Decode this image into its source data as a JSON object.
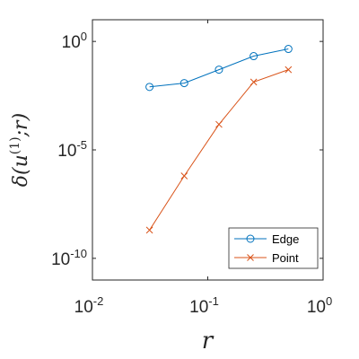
{
  "chart_data": {
    "type": "line",
    "xscale": "log",
    "yscale": "log",
    "xlim": [
      0.01,
      1
    ],
    "ylim": [
      1e-11,
      10
    ],
    "xticks": [
      {
        "base": "10",
        "exp": "-2",
        "value": 0.01
      },
      {
        "base": "10",
        "exp": "-1",
        "value": 0.1
      },
      {
        "base": "10",
        "exp": "0",
        "value": 1
      }
    ],
    "yticks": [
      {
        "base": "10",
        "exp": "0",
        "value": 1
      },
      {
        "base": "10",
        "exp": "-5",
        "value": 1e-05
      },
      {
        "base": "10",
        "exp": "-10",
        "value": 1e-10
      }
    ],
    "xlabel": "r",
    "ylabel": "δ(u(1);r)",
    "grid": false,
    "legend_position": "bottom-right",
    "series": [
      {
        "name": "Edge",
        "color": "#0072BD",
        "marker": "circle",
        "x": [
          0.03125,
          0.0625,
          0.125,
          0.25,
          0.5
        ],
        "y": [
          0.008,
          0.012,
          0.05,
          0.21,
          0.45
        ]
      },
      {
        "name": "Point",
        "color": "#D95319",
        "marker": "x",
        "x": [
          0.03125,
          0.0625,
          0.125,
          0.25,
          0.5
        ],
        "y": [
          2e-09,
          6.3e-07,
          0.00015,
          0.0135,
          0.05
        ]
      }
    ]
  }
}
